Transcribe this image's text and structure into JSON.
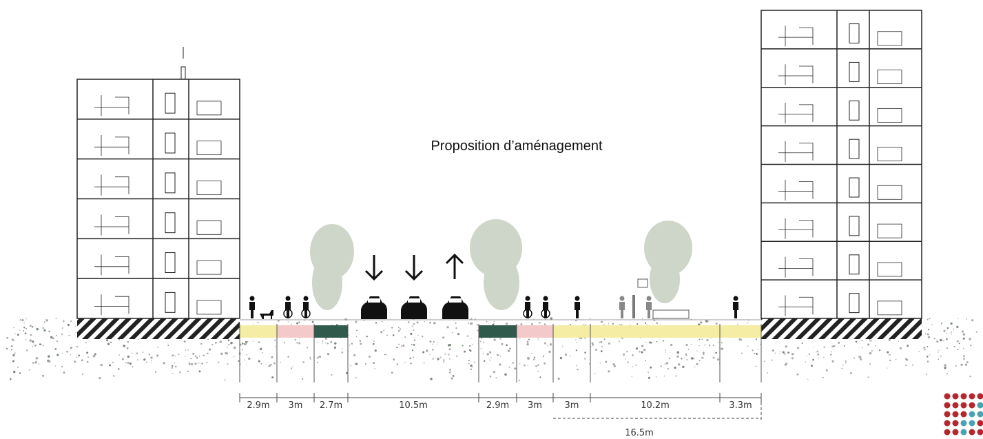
{
  "title": "Proposition d’aménagement",
  "dimensions": [
    "2.9m",
    "3m",
    "2.7m",
    "10.5m",
    "2.9m",
    "3m",
    "3m",
    "10.2m",
    "3.3m"
  ],
  "total_dimension": "16.5m"
}
